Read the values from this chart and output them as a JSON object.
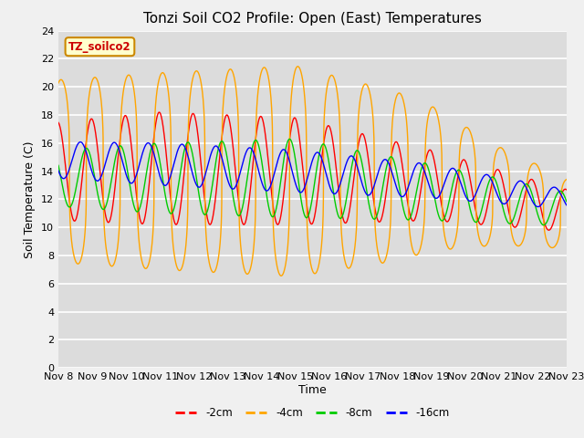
{
  "title": "Tonzi Soil CO2 Profile: Open (East) Temperatures",
  "ylabel": "Soil Temperature (C)",
  "xlabel": "Time",
  "legend_label": "TZ_soilco2",
  "ylim": [
    0,
    24
  ],
  "yticks": [
    0,
    2,
    4,
    6,
    8,
    10,
    12,
    14,
    16,
    18,
    20,
    22,
    24
  ],
  "xtick_labels": [
    "Nov 8",
    "Nov 9",
    "Nov 10",
    "Nov 11",
    "Nov 12",
    "Nov 13",
    "Nov 14",
    "Nov 15",
    "Nov 16",
    "Nov 17",
    "Nov 18",
    "Nov 19",
    "Nov 20",
    "Nov 21",
    "Nov 22",
    "Nov 23"
  ],
  "series_labels": [
    "-2cm",
    "-4cm",
    "-8cm",
    "-16cm"
  ],
  "series_colors": [
    "#ff0000",
    "#ffa500",
    "#00cc00",
    "#0000ff"
  ],
  "plot_bg_color": "#dcdcdc",
  "fig_bg_color": "#f0f0f0",
  "title_fontsize": 11,
  "axis_label_fontsize": 9,
  "tick_fontsize": 8
}
